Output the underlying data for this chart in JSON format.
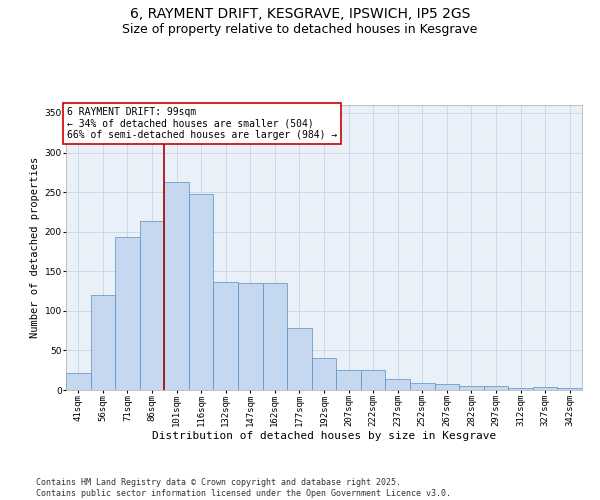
{
  "title": "6, RAYMENT DRIFT, KESGRAVE, IPSWICH, IP5 2GS",
  "subtitle": "Size of property relative to detached houses in Kesgrave",
  "xlabel": "Distribution of detached houses by size in Kesgrave",
  "ylabel": "Number of detached properties",
  "categories": [
    "41sqm",
    "56sqm",
    "71sqm",
    "86sqm",
    "101sqm",
    "116sqm",
    "132sqm",
    "147sqm",
    "162sqm",
    "177sqm",
    "192sqm",
    "207sqm",
    "222sqm",
    "237sqm",
    "252sqm",
    "267sqm",
    "282sqm",
    "297sqm",
    "312sqm",
    "327sqm",
    "342sqm"
  ],
  "values": [
    22,
    120,
    193,
    214,
    263,
    248,
    136,
    135,
    135,
    78,
    40,
    25,
    25,
    14,
    9,
    7,
    5,
    5,
    3,
    4,
    2
  ],
  "bar_color": "#c5d8f0",
  "bar_edge_color": "#5a8fc3",
  "vline_color": "#aa0000",
  "vline_x": 3.5,
  "annotation_text": "6 RAYMENT DRIFT: 99sqm\n← 34% of detached houses are smaller (504)\n66% of semi-detached houses are larger (984) →",
  "annotation_box_facecolor": "#ffffff",
  "annotation_box_edgecolor": "#cc0000",
  "ylim": [
    0,
    360
  ],
  "yticks": [
    0,
    50,
    100,
    150,
    200,
    250,
    300,
    350
  ],
  "grid_color": "#c8d4e8",
  "bg_color": "#eaf0f8",
  "footer_line1": "Contains HM Land Registry data © Crown copyright and database right 2025.",
  "footer_line2": "Contains public sector information licensed under the Open Government Licence v3.0.",
  "title_fontsize": 10,
  "subtitle_fontsize": 9,
  "xlabel_fontsize": 8,
  "ylabel_fontsize": 7.5,
  "tick_fontsize": 6.5,
  "annotation_fontsize": 7,
  "footer_fontsize": 6
}
